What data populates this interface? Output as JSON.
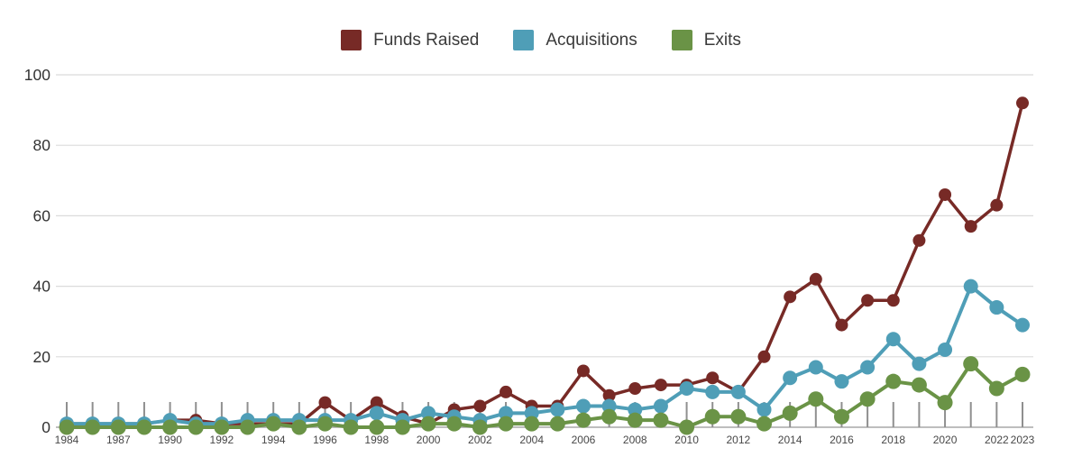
{
  "legend": {
    "items": [
      {
        "label": "Funds Raised",
        "color": "#772A26"
      },
      {
        "label": "Acquisitions",
        "color": "#4F9EB7"
      },
      {
        "label": "Exits",
        "color": "#6A9346"
      }
    ]
  },
  "chart_data": {
    "type": "line",
    "title": "",
    "xlabel": "",
    "ylabel": "",
    "x": [
      1984,
      1986,
      1987,
      1989,
      1990,
      1991,
      1992,
      1993,
      1994,
      1995,
      1996,
      1997,
      1998,
      1999,
      2000,
      2001,
      2002,
      2003,
      2004,
      2005,
      2006,
      2007,
      2008,
      2009,
      2010,
      2011,
      2012,
      2013,
      2014,
      2015,
      2016,
      2017,
      2018,
      2019,
      2020,
      2021,
      2022,
      2023
    ],
    "x_labels": [
      "1984",
      "",
      "1987",
      "",
      "1990",
      "",
      "1992",
      "",
      "1994",
      "",
      "1996",
      "",
      "1998",
      "",
      "2000",
      "",
      "2002",
      "",
      "2004",
      "",
      "2006",
      "",
      "2008",
      "",
      "2010",
      "",
      "2012",
      "",
      "2014",
      "",
      "2016",
      "",
      "2018",
      "",
      "2020",
      "",
      "2022",
      "2023"
    ],
    "series": [
      {
        "name": "Funds Raised",
        "color": "#772A26",
        "values": [
          1,
          1,
          1,
          1,
          2,
          2,
          1,
          1,
          1,
          1,
          7,
          2,
          7,
          3,
          1,
          5,
          6,
          10,
          6,
          6,
          16,
          9,
          11,
          12,
          12,
          14,
          10,
          20,
          37,
          42,
          29,
          36,
          36,
          53,
          66,
          57,
          63,
          92
        ]
      },
      {
        "name": "Acquisitions",
        "color": "#4F9EB7",
        "values": [
          1,
          1,
          1,
          1,
          2,
          1,
          1,
          2,
          2,
          2,
          2,
          2,
          4,
          2,
          4,
          3,
          2,
          4,
          4,
          5,
          6,
          6,
          5,
          6,
          11,
          10,
          10,
          5,
          14,
          17,
          13,
          17,
          25,
          18,
          22,
          40,
          34,
          29
        ]
      },
      {
        "name": "Exits",
        "color": "#6A9346",
        "values": [
          0,
          0,
          0,
          0,
          0,
          0,
          0,
          0,
          1,
          0,
          1,
          0,
          0,
          0,
          1,
          1,
          0,
          1,
          1,
          1,
          2,
          3,
          2,
          2,
          0,
          3,
          3,
          1,
          4,
          8,
          3,
          8,
          13,
          12,
          7,
          18,
          11,
          15
        ]
      }
    ],
    "ylim": [
      0,
      100
    ],
    "yticks": [
      0,
      20,
      40,
      60,
      80,
      100
    ],
    "grid": "horizontal",
    "grid_color": "#DBDBDB",
    "axis_color": "#A8A8A8",
    "tick_color": "#8F8F8F",
    "ytick_label_color": "#333333",
    "xtick_label_color": "#474747",
    "legend_position": "top-center"
  }
}
